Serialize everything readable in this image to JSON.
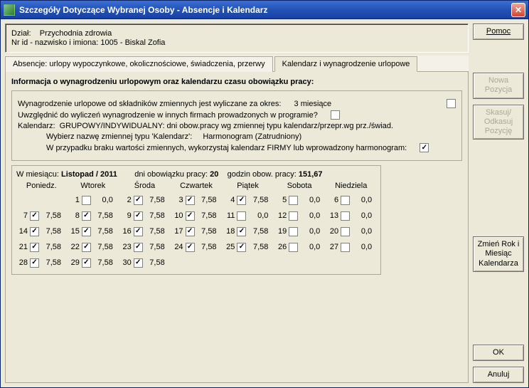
{
  "window": {
    "title": "Szczegóły Dotyczące Wybranej Osoby - Absencje i Kalendarz"
  },
  "header": {
    "dept_label": "Dział:",
    "dept_value": "Przychodnia zdrowia",
    "id_label": "Nr id - nazwisko i imiona:",
    "id_value": "1005 - Biskal Zofia"
  },
  "tabs": {
    "t1": "Absencje: urlopy wypoczynkowe, okolicznościowe, świadczenia, przerwy",
    "t2": "Kalendarz i wynagrodzenie urlopowe"
  },
  "section_title": "Informacja o wynagrodzeniu urlopowym oraz kalendarzu czasu obowiązku pracy:",
  "settings": {
    "row1_a": "Wynagrodzenie urlopowe od składników zmiennych jest wyliczane za okres:",
    "row1_b": "3 miesiące",
    "row2": "Uwzględnić do wyliczeń wynagrodzenie w innych firmach prowadzonych w programie?",
    "row3_a": "Kalendarz:",
    "row3_b": "GRUPOWY/INDYWIDUALNY: dni obow.pracy wg zmiennej typu kalendarz/przepr.wg prz./świad.",
    "row4_a": "Wybierz nazwę zmiennej typu 'Kalendarz':",
    "row4_b": "Harmonogram (Zatrudniony)",
    "row5": "W przypadku braku wartości zmiennych, wykorzystaj kalendarz FIRMY lub wprowadzony harmonogram:"
  },
  "cal": {
    "hdr_a": "W miesiącu:",
    "month": "Listopad / 2011",
    "hdr_b": "dni obowiązku pracy:",
    "days_count": "20",
    "hdr_c": "godzin obow. pracy:",
    "hours": "151,67",
    "weekdays": [
      "Poniedz.",
      "Wtorek",
      "Środa",
      "Czwartek",
      "Piątek",
      "Sobota",
      "Niedziela"
    ],
    "cells": [
      {
        "empty": true
      },
      {
        "d": "1",
        "chk": false,
        "v": "0,0"
      },
      {
        "d": "2",
        "chk": true,
        "v": "7,58"
      },
      {
        "d": "3",
        "chk": true,
        "v": "7,58"
      },
      {
        "d": "4",
        "chk": true,
        "v": "7,58"
      },
      {
        "d": "5",
        "chk": false,
        "v": "0,0"
      },
      {
        "d": "6",
        "chk": false,
        "v": "0,0"
      },
      {
        "d": "7",
        "chk": true,
        "v": "7,58"
      },
      {
        "d": "8",
        "chk": true,
        "v": "7,58"
      },
      {
        "d": "9",
        "chk": true,
        "v": "7,58"
      },
      {
        "d": "10",
        "chk": true,
        "v": "7,58"
      },
      {
        "d": "11",
        "chk": false,
        "v": "0,0"
      },
      {
        "d": "12",
        "chk": false,
        "v": "0,0"
      },
      {
        "d": "13",
        "chk": false,
        "v": "0,0"
      },
      {
        "d": "14",
        "chk": true,
        "v": "7,58"
      },
      {
        "d": "15",
        "chk": true,
        "v": "7,58"
      },
      {
        "d": "16",
        "chk": true,
        "v": "7,58"
      },
      {
        "d": "17",
        "chk": true,
        "v": "7,58"
      },
      {
        "d": "18",
        "chk": true,
        "v": "7,58"
      },
      {
        "d": "19",
        "chk": false,
        "v": "0,0"
      },
      {
        "d": "20",
        "chk": false,
        "v": "0,0"
      },
      {
        "d": "21",
        "chk": true,
        "v": "7,58"
      },
      {
        "d": "22",
        "chk": true,
        "v": "7,58"
      },
      {
        "d": "23",
        "chk": true,
        "v": "7,58"
      },
      {
        "d": "24",
        "chk": true,
        "v": "7,58"
      },
      {
        "d": "25",
        "chk": true,
        "v": "7,58"
      },
      {
        "d": "26",
        "chk": false,
        "v": "0,0"
      },
      {
        "d": "27",
        "chk": false,
        "v": "0,0"
      },
      {
        "d": "28",
        "chk": true,
        "v": "7,58"
      },
      {
        "d": "29",
        "chk": true,
        "v": "7,58"
      },
      {
        "d": "30",
        "chk": true,
        "v": "7,58"
      },
      {
        "empty": true
      },
      {
        "empty": true
      },
      {
        "empty": true
      },
      {
        "empty": true
      }
    ]
  },
  "buttons": {
    "help": "Pomoc",
    "new_pos": "Nowa Pozycja",
    "skasuj": "Skasuj/ Odkasuj Pozycję",
    "change_cal": "Zmień Rok i Miesiąc Kalendarza",
    "ok": "OK",
    "anuluj": "Anuluj"
  }
}
